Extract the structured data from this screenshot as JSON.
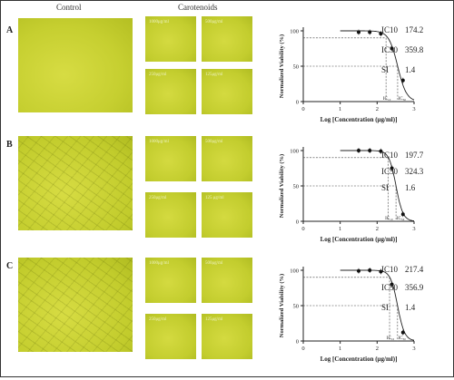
{
  "headers": {
    "control": "Control",
    "treatment": "Carotenoids"
  },
  "panels": [
    {
      "label": "A",
      "doses": [
        "1000μg/ml",
        "500μg/ml",
        "250μg/ml",
        "125μg/ml"
      ],
      "stats": [
        {
          "name": "IC10",
          "value": "174.2"
        },
        {
          "name": "IC50",
          "value": "359.8"
        },
        {
          "name": "SI",
          "value": "1.4"
        }
      ]
    },
    {
      "label": "B",
      "doses": [
        "1000μg/ml",
        "500μg/ml",
        "250μg/ml",
        "125 μg/ml"
      ],
      "stats": [
        {
          "name": "IC10",
          "value": "197.7"
        },
        {
          "name": "IC50",
          "value": "324.3"
        },
        {
          "name": "SI",
          "value": "1.6"
        }
      ]
    },
    {
      "label": "C",
      "doses": [
        "1000μg/ml",
        "500μg/ml",
        "250μg/ml",
        "125μg/ml"
      ],
      "stats": [
        {
          "name": "IC10",
          "value": "217.4"
        },
        {
          "name": "IC50",
          "value": "356.9"
        },
        {
          "name": "SI",
          "value": "1.4"
        }
      ]
    }
  ],
  "chart_data": [
    {
      "type": "scatter",
      "title": "",
      "xlabel": "Log [Concentration (μg/ml)]",
      "ylabel": "Normalized Viability (%)",
      "xlim": [
        0,
        3
      ],
      "ylim": [
        0,
        100
      ],
      "xticks": [
        0,
        1,
        2,
        3
      ],
      "yticks": [
        0,
        50,
        100
      ],
      "x": [
        1.5,
        1.8,
        2.1,
        2.4,
        2.7
      ],
      "y": [
        98,
        98,
        96,
        75,
        30
      ],
      "curve": {
        "top": 100,
        "bottom": 0,
        "logIC50": 2.556,
        "hill": 3.6
      },
      "markers": {
        "ic10_x": 2.241,
        "ic50_x": 2.556,
        "ic10_y": 90,
        "ic50_y": 50
      },
      "marker_labels": [
        "IC₁₀",
        "IC₅₀"
      ]
    },
    {
      "type": "scatter",
      "title": "",
      "xlabel": "Log [Concentration (μg/ml)]",
      "ylabel": "Normalized Viability (%)",
      "xlim": [
        0,
        3
      ],
      "ylim": [
        0,
        100
      ],
      "xticks": [
        0,
        1,
        2,
        3
      ],
      "yticks": [
        0,
        50,
        100
      ],
      "x": [
        1.5,
        1.8,
        2.1,
        2.4,
        2.7
      ],
      "y": [
        100,
        100,
        99,
        75,
        10
      ],
      "curve": {
        "top": 100,
        "bottom": 0,
        "logIC50": 2.511,
        "hill": 4.6
      },
      "markers": {
        "ic10_x": 2.296,
        "ic50_x": 2.511,
        "ic10_y": 90,
        "ic50_y": 50
      },
      "marker_labels": [
        "IC₁₀",
        "IC₅₀"
      ]
    },
    {
      "type": "scatter",
      "title": "",
      "xlabel": "Log [Concentration (μg/ml)]",
      "ylabel": "Normalized Viability (%)",
      "xlim": [
        0,
        3
      ],
      "ylim": [
        0,
        100
      ],
      "xticks": [
        0,
        1,
        2,
        3
      ],
      "yticks": [
        0,
        50,
        100
      ],
      "x": [
        1.5,
        1.8,
        2.1,
        2.4,
        2.7
      ],
      "y": [
        99,
        100,
        98,
        80,
        12
      ],
      "curve": {
        "top": 100,
        "bottom": 0,
        "logIC50": 2.553,
        "hill": 4.5
      },
      "markers": {
        "ic10_x": 2.337,
        "ic50_x": 2.553,
        "ic10_y": 90,
        "ic50_y": 50
      },
      "marker_labels": [
        "IC₁₀",
        "IC₅₀"
      ]
    }
  ]
}
